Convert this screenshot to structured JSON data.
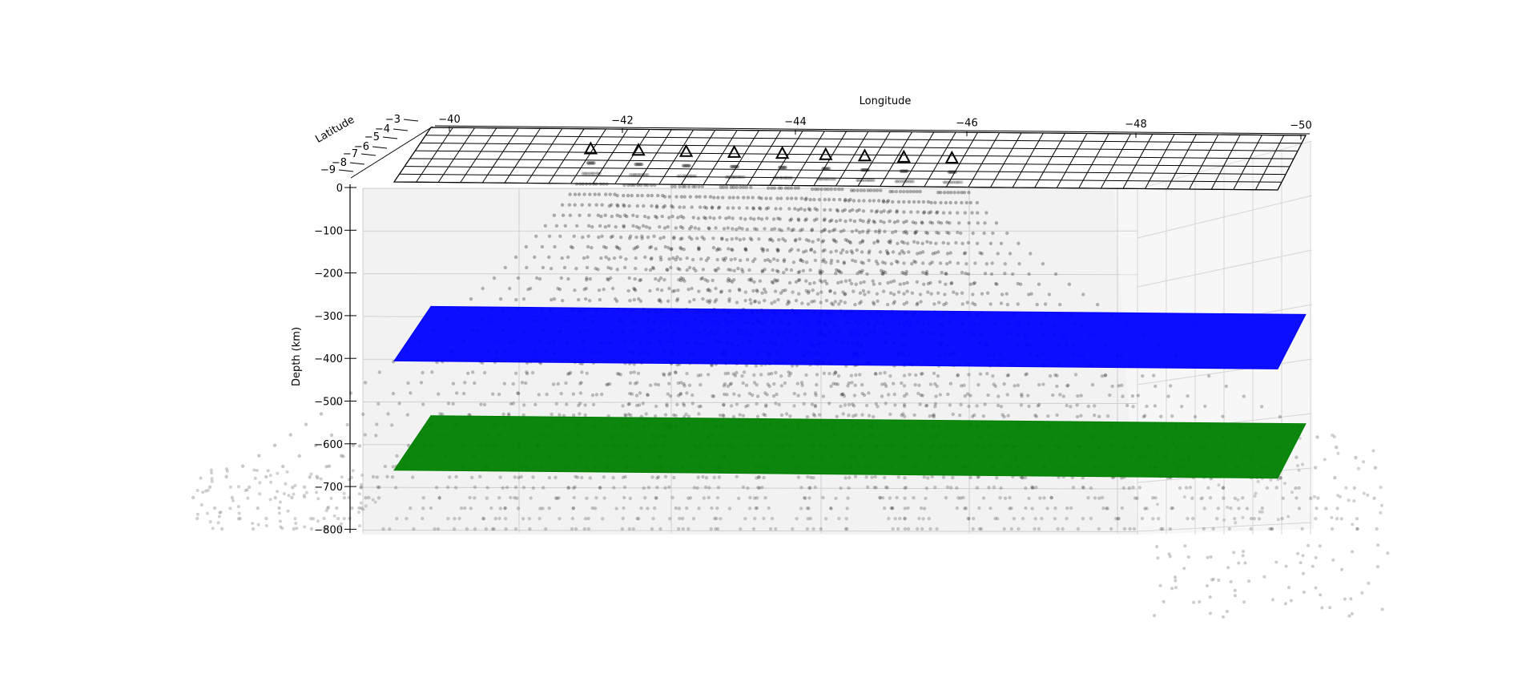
{
  "chart_data": {
    "type": "scatter",
    "projection": "3d",
    "xlabel": "Longitude",
    "ylabel": "Latitude",
    "zlabel": "Depth (km)",
    "xlim": [
      -40,
      -50
    ],
    "ylim": [
      -3,
      -9
    ],
    "zlim": [
      -800,
      0
    ],
    "x_ticks": [
      "−40",
      "−42",
      "−44",
      "−46",
      "−48",
      "−50"
    ],
    "y_ticks": [
      "−3",
      "−4",
      "−5",
      "−6",
      "−7",
      "−8",
      "−9"
    ],
    "z_ticks": [
      "0",
      "−100",
      "−200",
      "−300",
      "−400",
      "−500",
      "−600",
      "−700",
      "−800"
    ],
    "grid": true,
    "surfaces": [
      {
        "depth": 0,
        "style": "wireframe",
        "color": "#000000"
      },
      {
        "depth": -410,
        "style": "surface",
        "color": "#0000ff"
      },
      {
        "depth": -660,
        "style": "surface",
        "color": "#008000"
      }
    ],
    "stations": {
      "marker": "triangle",
      "color": "#000000",
      "longitude": [
        -42.0,
        -42.55,
        -43.1,
        -43.65,
        -44.2,
        -44.7,
        -45.15,
        -45.6,
        -46.15
      ],
      "latitude": [
        -5.6,
        -5.7,
        -5.8,
        -5.85,
        -5.9,
        -6.0,
        -6.1,
        -6.2,
        -6.25
      ],
      "depth": [
        0,
        0,
        0,
        0,
        0,
        0,
        0,
        0,
        0
      ]
    },
    "ray_paths": {
      "marker": "point",
      "color": "#808080",
      "description_per_station_fanning_rays": true
    }
  }
}
